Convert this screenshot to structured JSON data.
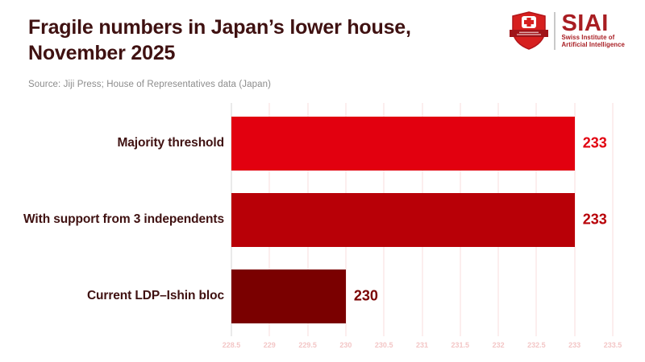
{
  "header": {
    "title_line1": "Fragile numbers in Japan’s lower house,",
    "title_line2": "November 2025",
    "source": "Source: Jiji Press; House of Representatives data (Japan)"
  },
  "logo": {
    "acronym": "SIAI",
    "subtitle_line1": "Swiss Institute of",
    "subtitle_line2": "Artificial Intelligence",
    "shield_icon": "swiss-shield-cross-icon",
    "colors": {
      "shield_red": "#d6201f",
      "shield_border": "#b2151a",
      "banner_dark_red": "#9f1419",
      "text_red": "#a81d22",
      "divider_gray": "#c9c9c9"
    }
  },
  "chart_data": {
    "type": "bar",
    "orientation": "horizontal",
    "title": "Fragile numbers in Japan’s lower house, November 2025",
    "source": "Source: Jiji Press; House of Representatives data (Japan)",
    "categories": [
      "Majority threshold",
      "With support from 3 independents",
      "Current LDP–Ishin bloc"
    ],
    "values": [
      233,
      233,
      230
    ],
    "value_labels": [
      "233",
      "233",
      "230"
    ],
    "bar_colors": [
      "#e2000f",
      "#b80007",
      "#7a0000"
    ],
    "xlim": [
      228.5,
      233.5
    ],
    "x_ticks": [
      228.5,
      229,
      229.5,
      230,
      230.5,
      231,
      231.5,
      232,
      232.5,
      233,
      233.5
    ],
    "x_tick_labels": [
      "228.5",
      "229",
      "229.5",
      "230",
      "230.5",
      "231",
      "231.5",
      "232",
      "232.5",
      "233",
      "233.5"
    ],
    "grid": true,
    "legend": "none",
    "styles": {
      "gridline_color": "#f9dede",
      "first_gridline_color": "#d6d6d6",
      "tick_label_color": "#f3c6c6",
      "category_label_color": "#3f1111",
      "title_color": "#3f1111",
      "source_color": "#8c8c8c"
    }
  }
}
